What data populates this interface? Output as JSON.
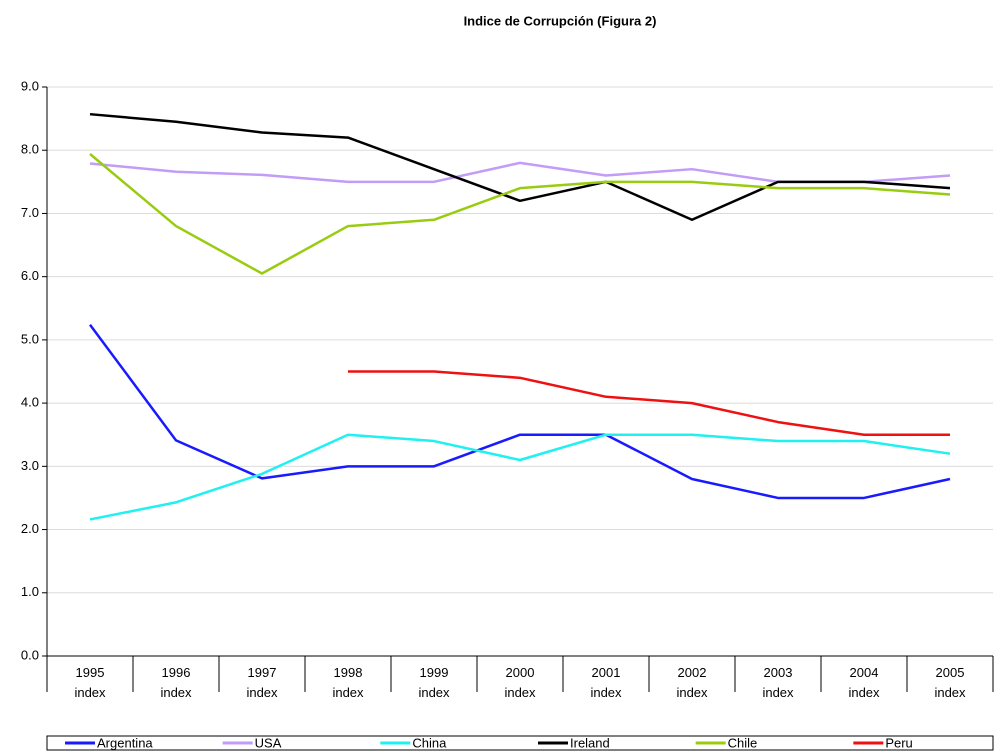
{
  "chart_data": {
    "type": "line",
    "title": "Indice de Corrupción (Figura 2)",
    "categories": [
      "1995 index",
      "1996 index",
      "1997 index",
      "1998 index",
      "1999 index",
      "2000 index",
      "2001 index",
      "2002 index",
      "2003 index",
      "2004 index",
      "2005 index"
    ],
    "series": [
      {
        "name": "Argentina",
        "color": "#1a1aff",
        "values": [
          5.24,
          3.41,
          2.81,
          3.0,
          3.0,
          3.5,
          3.5,
          2.8,
          2.5,
          2.5,
          2.8
        ]
      },
      {
        "name": "USA",
        "color": "#c29cf6",
        "values": [
          7.79,
          7.66,
          7.61,
          7.5,
          7.5,
          7.8,
          7.6,
          7.7,
          7.5,
          7.5,
          7.6
        ]
      },
      {
        "name": "China",
        "color": "#1ff0f0",
        "values": [
          2.16,
          2.43,
          2.88,
          3.5,
          3.4,
          3.1,
          3.5,
          3.5,
          3.4,
          3.4,
          3.2
        ]
      },
      {
        "name": "Ireland",
        "color": "#000000",
        "values": [
          8.57,
          8.45,
          8.28,
          8.2,
          7.7,
          7.2,
          7.5,
          6.9,
          7.5,
          7.5,
          7.4
        ]
      },
      {
        "name": "Chile",
        "color": "#99cc11",
        "values": [
          7.94,
          6.8,
          6.05,
          6.8,
          6.9,
          7.4,
          7.5,
          7.5,
          7.4,
          7.4,
          7.3
        ]
      },
      {
        "name": "Peru",
        "color": "#ee1111",
        "values": [
          null,
          null,
          null,
          4.5,
          4.5,
          4.4,
          4.1,
          4.0,
          3.7,
          3.5,
          3.5
        ]
      }
    ],
    "ylim": [
      0,
      9
    ],
    "yticks": [
      {
        "value": 0,
        "label": "0.0"
      },
      {
        "value": 1,
        "label": "1.0"
      },
      {
        "value": 2,
        "label": "2.0"
      },
      {
        "value": 3,
        "label": "3.0"
      },
      {
        "value": 4,
        "label": "4.0"
      },
      {
        "value": 5,
        "label": "5.0"
      },
      {
        "value": 6,
        "label": "6.0"
      },
      {
        "value": 7,
        "label": "7.0"
      },
      {
        "value": 8,
        "label": "8.0"
      },
      {
        "value": 9,
        "label": "9.0"
      }
    ],
    "grid": true,
    "legend": "bottom"
  }
}
